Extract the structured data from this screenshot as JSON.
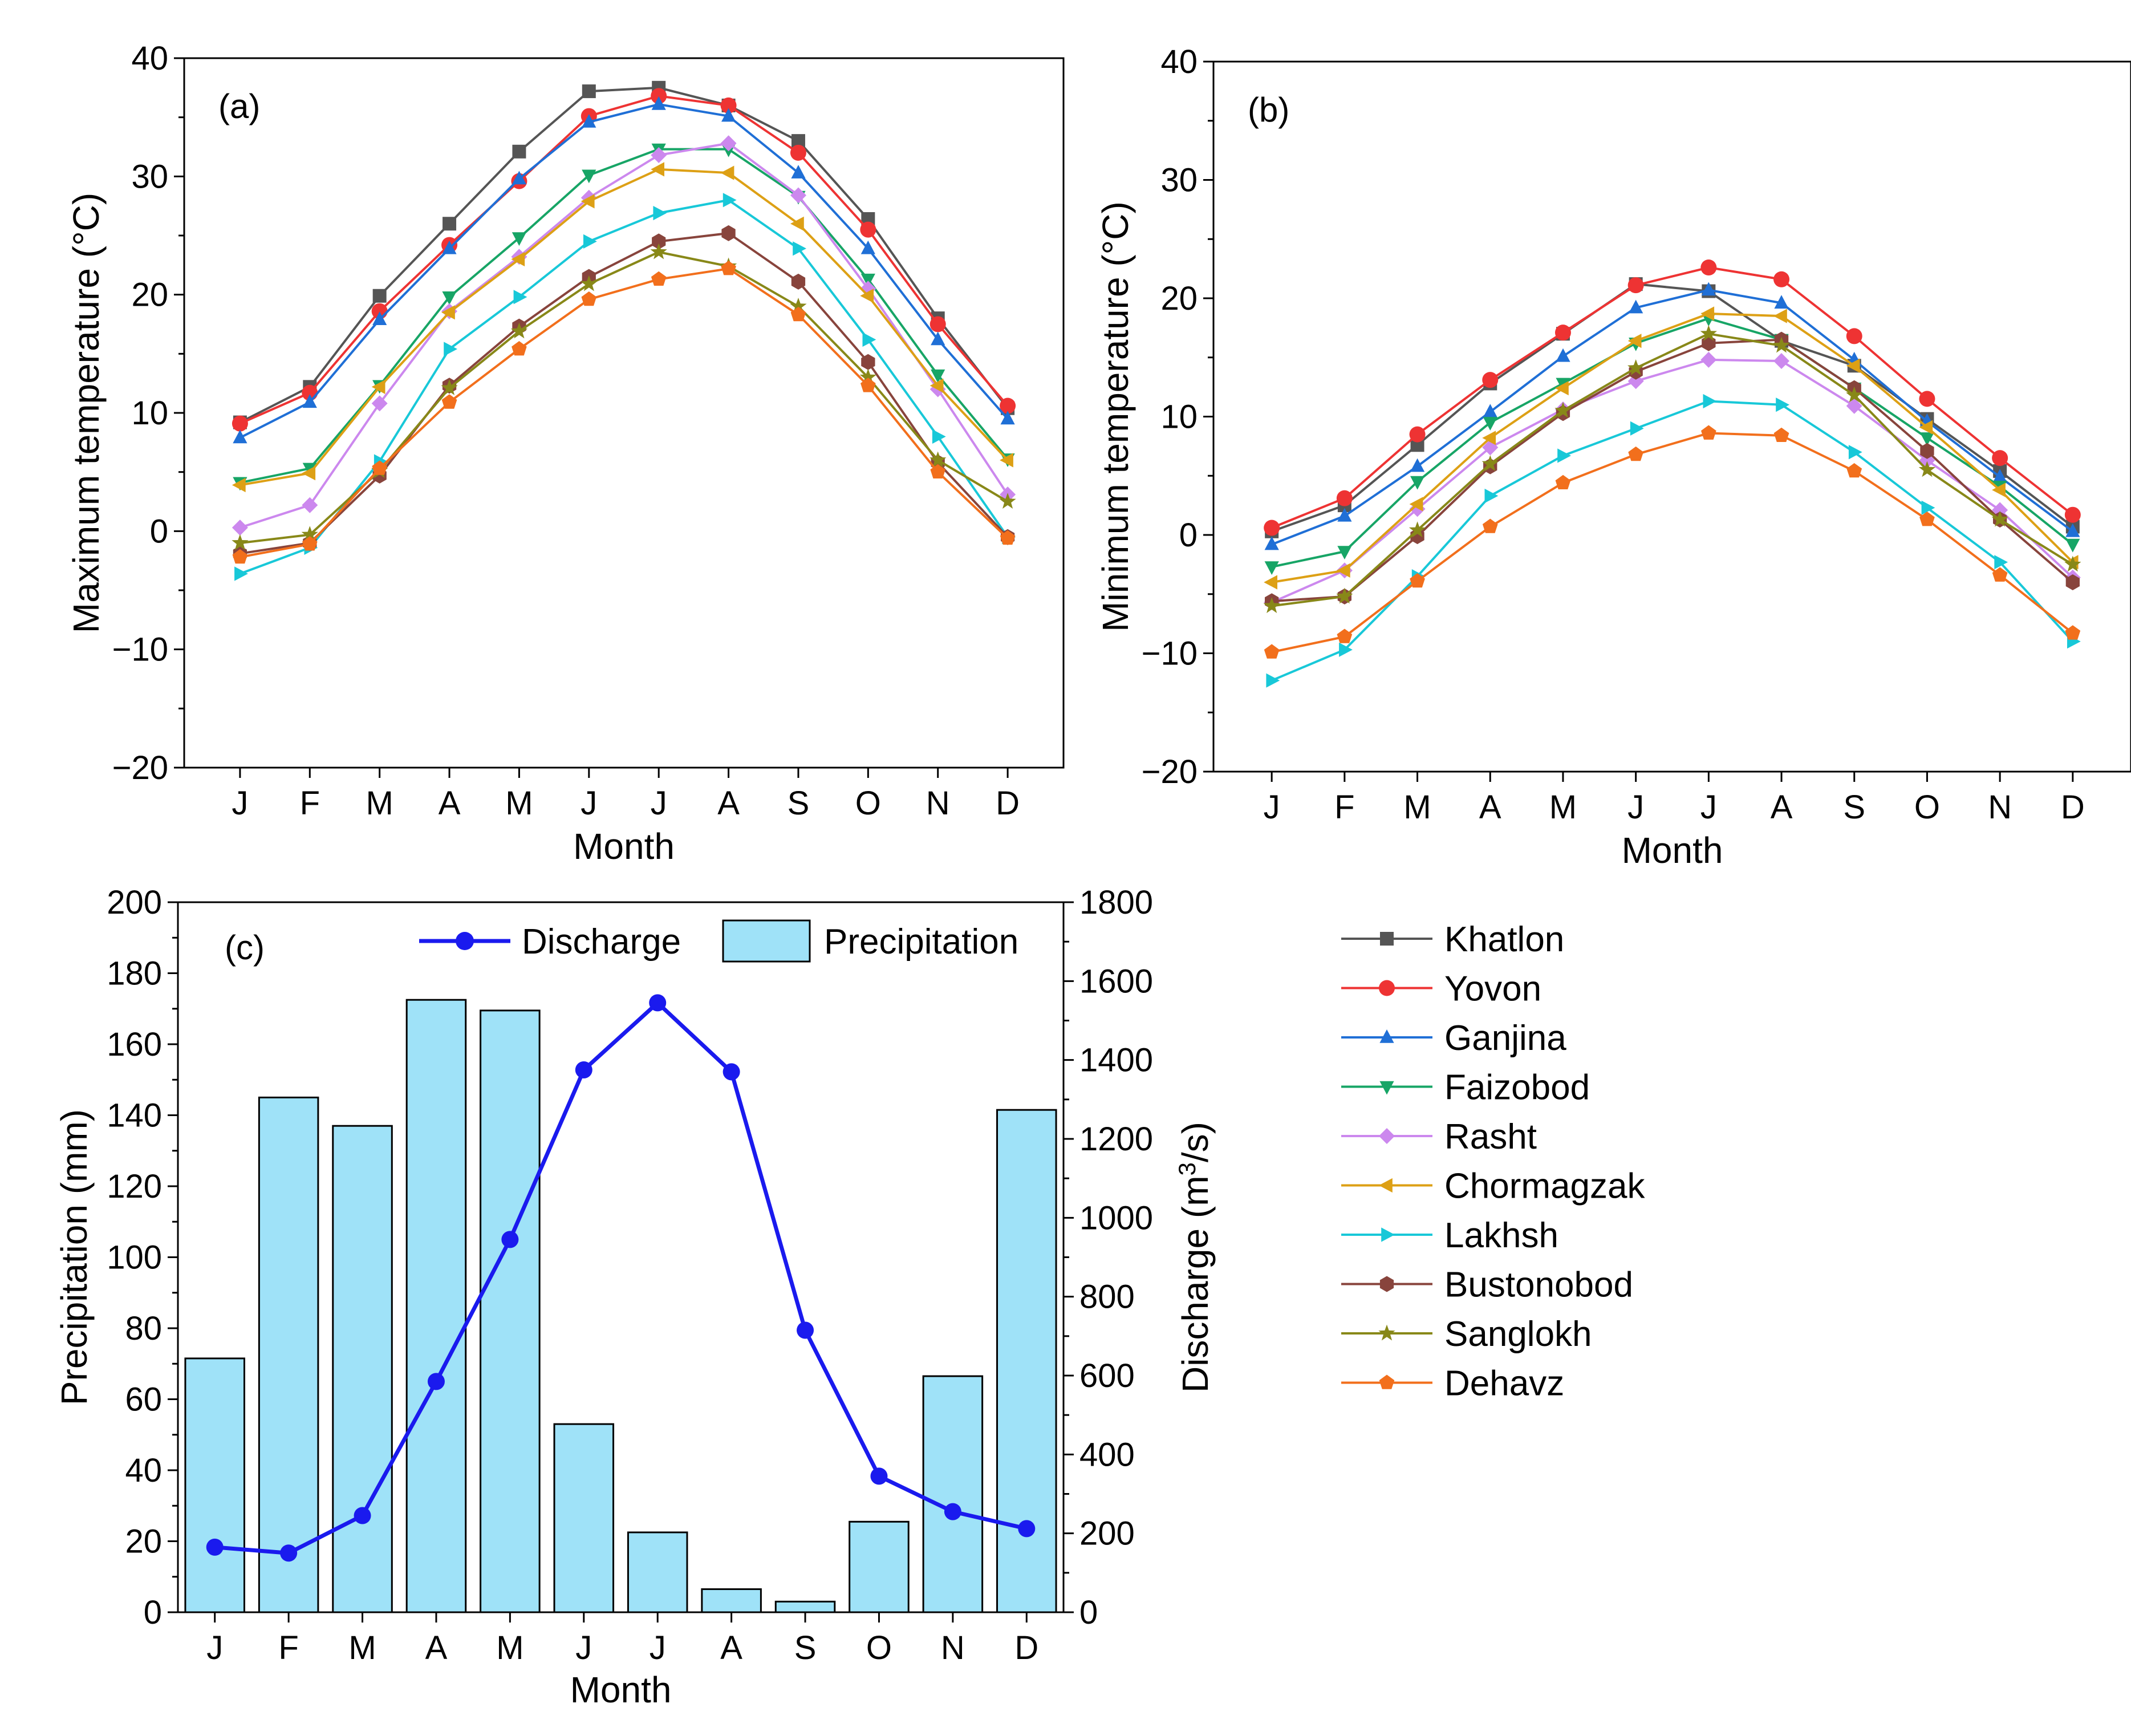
{
  "chart_data": [
    {
      "type": "line",
      "panel_label": "(a)",
      "xlabel": "Month",
      "ylabel_main": "Maximum temperature (",
      "ylabel_unit": "°C",
      "ylabel_close": ")",
      "categories": [
        "J",
        "F",
        "M",
        "A",
        "M",
        "J",
        "J",
        "A",
        "S",
        "O",
        "N",
        "D"
      ],
      "ylim": [
        -20,
        40
      ],
      "yticks": [
        -20,
        -10,
        0,
        10,
        20,
        30,
        40
      ],
      "ytick_labels": [
        "−20",
        "−10",
        "0",
        "10",
        "20",
        "30",
        "40"
      ],
      "series": [
        {
          "name": "Khatlon",
          "values": [
            9.2,
            12.2,
            19.9,
            26.0,
            32.1,
            37.2,
            37.5,
            36.0,
            33.0,
            26.4,
            18.0,
            10.4
          ]
        },
        {
          "name": "Yovon",
          "values": [
            9.1,
            11.7,
            18.6,
            24.2,
            29.6,
            35.1,
            36.8,
            36.0,
            32.0,
            25.5,
            17.5,
            10.6
          ]
        },
        {
          "name": "Ganjina",
          "values": [
            7.9,
            10.9,
            17.9,
            23.9,
            29.8,
            34.6,
            36.1,
            35.1,
            30.3,
            23.9,
            16.2,
            9.5
          ]
        },
        {
          "name": "Faizobod",
          "values": [
            4.1,
            5.3,
            12.3,
            19.8,
            24.8,
            30.1,
            32.3,
            32.3,
            28.3,
            21.3,
            13.2,
            6.1
          ]
        },
        {
          "name": "Rasht",
          "values": [
            0.3,
            2.2,
            10.8,
            18.6,
            23.2,
            28.2,
            31.8,
            32.8,
            28.4,
            20.5,
            12.0,
            3.1
          ]
        },
        {
          "name": "Chormagzak",
          "values": [
            3.9,
            4.9,
            12.2,
            18.5,
            23.0,
            27.9,
            30.6,
            30.3,
            26.0,
            19.9,
            12.3,
            6.0
          ]
        },
        {
          "name": "Lakhsh",
          "values": [
            -3.6,
            -1.4,
            5.9,
            15.4,
            19.8,
            24.5,
            26.9,
            28.0,
            23.9,
            16.2,
            8.0,
            -0.5
          ]
        },
        {
          "name": "Bustonobod",
          "values": [
            -1.9,
            -1.0,
            4.7,
            12.3,
            17.3,
            21.5,
            24.5,
            25.2,
            21.1,
            14.3,
            5.8,
            -0.5
          ]
        },
        {
          "name": "Sanglokh",
          "values": [
            -1.0,
            -0.3,
            5.1,
            12.1,
            16.9,
            20.9,
            23.6,
            22.4,
            19.0,
            13.0,
            6.0,
            2.5
          ]
        },
        {
          "name": "Dehavz",
          "values": [
            -2.2,
            -1.1,
            5.3,
            10.9,
            15.4,
            19.6,
            21.3,
            22.2,
            18.3,
            12.3,
            5.0,
            -0.6
          ]
        }
      ]
    },
    {
      "type": "line",
      "panel_label": "(b)",
      "xlabel": "Month",
      "ylabel_main": "Minimum temperature (",
      "ylabel_unit": "°C",
      "ylabel_close": ")",
      "categories": [
        "J",
        "F",
        "M",
        "A",
        "M",
        "J",
        "J",
        "A",
        "S",
        "O",
        "N",
        "D"
      ],
      "ylim": [
        -20,
        40
      ],
      "yticks": [
        -20,
        -10,
        0,
        10,
        20,
        30,
        40
      ],
      "ytick_labels": [
        "−20",
        "−10",
        "0",
        "10",
        "20",
        "30",
        "40"
      ],
      "series": [
        {
          "name": "Khatlon",
          "values": [
            0.3,
            2.5,
            7.6,
            12.8,
            17.0,
            21.2,
            20.6,
            16.4,
            14.3,
            9.8,
            5.4,
            0.7
          ]
        },
        {
          "name": "Yovon",
          "values": [
            0.6,
            3.1,
            8.5,
            13.1,
            17.1,
            21.1,
            22.6,
            21.6,
            16.8,
            11.5,
            6.5,
            1.7
          ]
        },
        {
          "name": "Ganjina",
          "values": [
            -0.8,
            1.6,
            5.8,
            10.4,
            15.1,
            19.2,
            20.7,
            19.6,
            14.8,
            9.6,
            4.9,
            0.3
          ]
        },
        {
          "name": "Faizobod",
          "values": [
            -2.7,
            -1.4,
            4.5,
            9.5,
            12.8,
            16.2,
            18.3,
            16.5,
            12.4,
            8.2,
            4.1,
            -0.8
          ]
        },
        {
          "name": "Rasht",
          "values": [
            -5.7,
            -3.0,
            2.2,
            7.4,
            10.6,
            13.0,
            14.8,
            14.7,
            10.9,
            6.3,
            2.1,
            -3.6
          ]
        },
        {
          "name": "Chormagzak",
          "values": [
            -4.0,
            -3.0,
            2.6,
            8.2,
            12.4,
            16.4,
            18.7,
            18.5,
            14.3,
            9.1,
            3.8,
            -2.3
          ]
        },
        {
          "name": "Lakhsh",
          "values": [
            -12.3,
            -9.7,
            -3.5,
            3.3,
            6.7,
            9.0,
            11.3,
            11.0,
            7.0,
            2.3,
            -2.3,
            -9.0
          ]
        },
        {
          "name": "Bustonobod",
          "values": [
            -5.6,
            -5.2,
            -0.1,
            5.8,
            10.3,
            13.8,
            16.2,
            16.5,
            12.4,
            7.1,
            1.3,
            -4.0
          ]
        },
        {
          "name": "Sanglokh",
          "values": [
            -6.0,
            -5.2,
            0.4,
            6.0,
            10.5,
            14.1,
            17.0,
            16.0,
            11.8,
            5.5,
            1.3,
            -2.5
          ]
        },
        {
          "name": "Dehavz",
          "values": [
            -9.9,
            -8.6,
            -3.9,
            0.7,
            4.4,
            6.8,
            8.6,
            8.4,
            5.4,
            1.3,
            -3.4,
            -8.3
          ]
        }
      ]
    },
    {
      "type": "bar+line",
      "panel_label": "(c)",
      "xlabel": "Month",
      "ylabel_left": "Precipitation (mm)",
      "ylabel_right_main": "Discharge (m",
      "ylabel_right_sup": "3",
      "ylabel_right_close": "/s)",
      "categories": [
        "J",
        "F",
        "M",
        "A",
        "M",
        "J",
        "J",
        "A",
        "S",
        "O",
        "N",
        "D"
      ],
      "ylim_left": [
        0,
        200
      ],
      "yticks_left": [
        0,
        20,
        40,
        60,
        80,
        100,
        120,
        140,
        160,
        180,
        200
      ],
      "ylim_right": [
        0,
        1800
      ],
      "yticks_right": [
        0,
        200,
        400,
        600,
        800,
        1000,
        1200,
        1400,
        1600,
        1800
      ],
      "series": [
        {
          "name": "Precipitation",
          "axis": "left",
          "values": [
            71.5,
            145.0,
            137.0,
            172.5,
            169.5,
            53.0,
            22.5,
            6.5,
            3.0,
            25.5,
            66.5,
            141.5
          ]
        },
        {
          "name": "Discharge",
          "axis": "right",
          "values": [
            165,
            150,
            245,
            585,
            945,
            1375,
            1545,
            1370,
            715,
            345,
            255,
            212
          ]
        }
      ],
      "legend": [
        "Discharge",
        "Precipitation"
      ]
    }
  ],
  "legend": {
    "items": [
      {
        "name": "Khatlon",
        "color": "#555555",
        "marker": "square"
      },
      {
        "name": "Yovon",
        "color": "#ee3333",
        "marker": "circle"
      },
      {
        "name": "Ganjina",
        "color": "#1f6fd6",
        "marker": "triangle-up"
      },
      {
        "name": "Faizobod",
        "color": "#17a566",
        "marker": "triangle-down"
      },
      {
        "name": "Rasht",
        "color": "#cc88ee",
        "marker": "diamond"
      },
      {
        "name": "Chormagzak",
        "color": "#dda015",
        "marker": "triangle-left"
      },
      {
        "name": "Lakhsh",
        "color": "#18c8d8",
        "marker": "triangle-right"
      },
      {
        "name": "Bustonobod",
        "color": "#88443c",
        "marker": "hexagon"
      },
      {
        "name": "Sanglokh",
        "color": "#888818",
        "marker": "star"
      },
      {
        "name": "Dehavz",
        "color": "#f26f1c",
        "marker": "pentagon"
      }
    ]
  },
  "colors": {
    "precip_fill": "#9fe2f8",
    "discharge_line": "#1a1aee"
  }
}
